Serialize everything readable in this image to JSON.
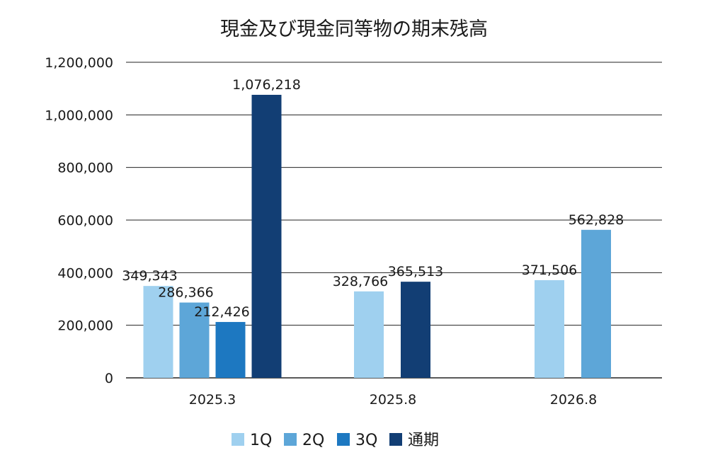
{
  "chart_data": {
    "type": "bar",
    "title": "現金及び現金同等物の期末残高",
    "xlabel": "",
    "ylabel": "",
    "categories": [
      "2025.3",
      "2025.8",
      "2026.8"
    ],
    "ylim": [
      0,
      1200000
    ],
    "yticks": [
      0,
      200000,
      400000,
      600000,
      800000,
      1000000,
      1200000
    ],
    "ytick_labels": [
      "0",
      "200,000",
      "400,000",
      "600,000",
      "800,000",
      "1,000,000",
      "1,200,000"
    ],
    "grid": true,
    "legend": "bottom",
    "series": [
      {
        "name": "1Q",
        "color": "#9fd0ef",
        "values": [
          349343,
          328766,
          371506
        ],
        "labels": [
          "349,343",
          "328,766",
          "371,506"
        ]
      },
      {
        "name": "2Q",
        "color": "#5da6d8",
        "values": [
          286366,
          null,
          562828
        ],
        "labels": [
          "286,366",
          "",
          "562,828"
        ]
      },
      {
        "name": "3Q",
        "color": "#1d78c1",
        "values": [
          212426,
          null,
          null
        ],
        "labels": [
          "212,426",
          "",
          ""
        ]
      },
      {
        "name": "通期",
        "color": "#123e74",
        "values": [
          1076218,
          365513,
          null
        ],
        "labels": [
          "1,076,218",
          "365,513",
          ""
        ]
      }
    ]
  }
}
